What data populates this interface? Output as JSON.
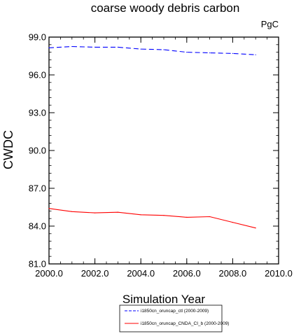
{
  "chart_data": {
    "type": "line",
    "title": "coarse woody debris carbon",
    "units": "PgC",
    "xlabel": "Simulation Year",
    "ylabel": "CWDC",
    "xlim": [
      2000,
      2010
    ],
    "ylim": [
      81,
      99
    ],
    "xticks": [
      2000,
      2002,
      2004,
      2006,
      2008,
      2010
    ],
    "xtick_labels": [
      "2000.0",
      "2002.0",
      "2004.0",
      "2006.0",
      "2008.0",
      "2010.0"
    ],
    "yticks": [
      81,
      84,
      87,
      90,
      93,
      96,
      99
    ],
    "ytick_labels": [
      "81.0",
      "84.0",
      "87.0",
      "90.0",
      "93.0",
      "96.0",
      "99.0"
    ],
    "legend_position": "bottom-center",
    "grid": false,
    "series": [
      {
        "name": "i1850cn_oruncap_ctl (2000-2009)",
        "color": "#0000ff",
        "dashed": true,
        "x": [
          2000,
          2001,
          2002,
          2003,
          2004,
          2005,
          2006,
          2007,
          2008,
          2009
        ],
        "values": [
          98.15,
          98.25,
          98.2,
          98.2,
          98.05,
          98.0,
          97.8,
          97.75,
          97.7,
          97.6
        ]
      },
      {
        "name": "i1850cn_oruncap_CNDA_CI_b (2000-2009)",
        "color": "#ff0000",
        "dashed": false,
        "x": [
          2000,
          2001,
          2002,
          2003,
          2004,
          2005,
          2006,
          2007,
          2008,
          2009
        ],
        "values": [
          85.4,
          85.15,
          85.05,
          85.1,
          84.9,
          84.85,
          84.7,
          84.75,
          84.3,
          83.85
        ]
      }
    ]
  }
}
